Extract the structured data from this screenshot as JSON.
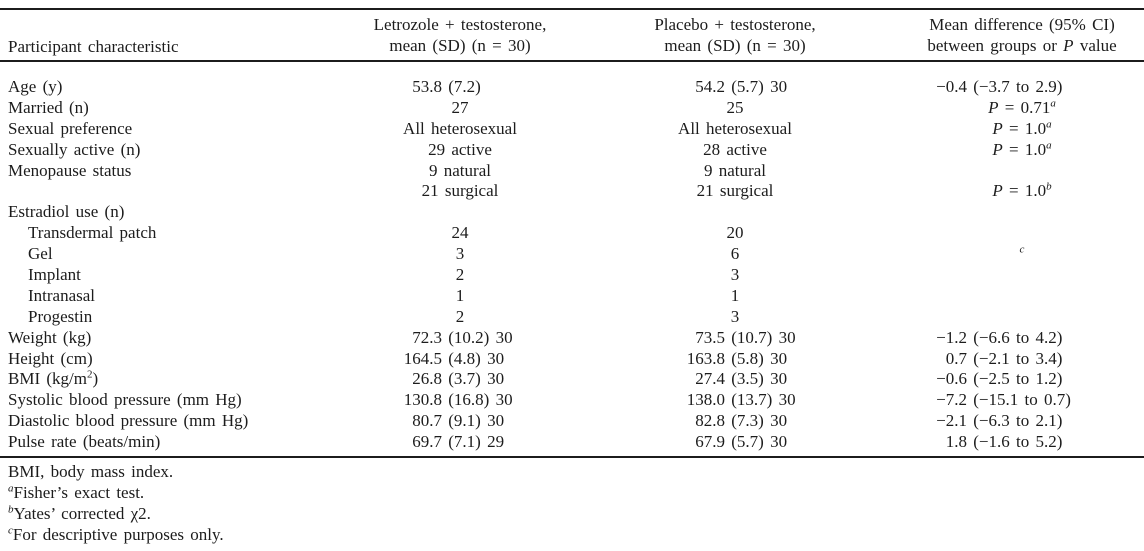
{
  "table": {
    "p": "P",
    "header": {
      "c1": "Participant characteristic",
      "c2": [
        "Letrozole + testosterone,",
        "mean (SD) (n = 30)"
      ],
      "c3": [
        "Placebo + testosterone,",
        "mean (SD) (n = 30)"
      ],
      "c4_line1": "Mean difference (95% CI)",
      "c4_line2_pre": "between groups or ",
      "c4_line2_post": " value"
    },
    "rows": [
      {
        "label": "Age (y)",
        "c2": {
          "h": "53.8",
          "t": " (7.2)"
        },
        "c3": {
          "h": "54.2",
          "t": " (5.7) 30"
        },
        "c4": {
          "h": "−0.4",
          "t": " (−3.7 to 2.9)"
        }
      },
      {
        "label": "Married (n)",
        "c2": {
          "c": "27"
        },
        "c3": {
          "c": "25"
        },
        "c4": {
          "p": " = 0.71",
          "sup": "a"
        }
      },
      {
        "label": "Sexual preference",
        "c2": {
          "c": "All heterosexual"
        },
        "c3": {
          "c": "All heterosexual"
        },
        "c4": {
          "p": " = 1.0",
          "sup": "a"
        }
      },
      {
        "label": "Sexually active (n)",
        "c2": {
          "c": "29 active"
        },
        "c3": {
          "c": "28 active"
        },
        "c4": {
          "p": " = 1.0",
          "sup": "a"
        }
      },
      {
        "label": "Menopause status",
        "c2": {
          "c": "9 natural"
        },
        "c3": {
          "c": "9 natural"
        }
      },
      {
        "label": "",
        "c2": {
          "c": "21 surgical"
        },
        "c3": {
          "c": "21 surgical"
        },
        "c4": {
          "p": " = 1.0",
          "sup": "b"
        }
      },
      {
        "label": "Estradiol use (n)"
      },
      {
        "label": "Transdermal patch",
        "indent": true,
        "c2": {
          "c": "24"
        },
        "c3": {
          "c": "20"
        }
      },
      {
        "label": "Gel",
        "indent": true,
        "c2": {
          "c": "3"
        },
        "c3": {
          "c": "6"
        },
        "c4": {
          "suponly": "c"
        }
      },
      {
        "label": "Implant",
        "indent": true,
        "c2": {
          "c": "2"
        },
        "c3": {
          "c": "3"
        }
      },
      {
        "label": "Intranasal",
        "indent": true,
        "c2": {
          "c": "1"
        },
        "c3": {
          "c": "1"
        }
      },
      {
        "label": "Progestin",
        "indent": true,
        "c2": {
          "c": "2"
        },
        "c3": {
          "c": "3"
        }
      },
      {
        "label": "Weight (kg)",
        "c2": {
          "h": "72.3",
          "t": " (10.2) 30"
        },
        "c3": {
          "h": "73.5",
          "t": " (10.7) 30"
        },
        "c4": {
          "h": "−1.2",
          "t": " (−6.6 to 4.2)"
        }
      },
      {
        "label": "Height (cm)",
        "c2": {
          "h": "164.5",
          "t": " (4.8) 30"
        },
        "c3": {
          "h": "163.8",
          "t": " (5.8) 30"
        },
        "c4": {
          "h": "0.7",
          "t": " (−2.1 to 3.4)"
        }
      },
      {
        "label_pre": "BMI (kg/m",
        "label_sup": "2",
        "label_post": ")",
        "c2": {
          "h": "26.8",
          "t": " (3.7) 30"
        },
        "c3": {
          "h": "27.4",
          "t": " (3.5) 30"
        },
        "c4": {
          "h": "−0.6",
          "t": " (−2.5 to 1.2)"
        }
      },
      {
        "label": "Systolic blood pressure (mm Hg)",
        "c2": {
          "h": "130.8",
          "t": " (16.8) 30"
        },
        "c3": {
          "h": "138.0",
          "t": " (13.7) 30"
        },
        "c4": {
          "h": "−7.2",
          "t": " (−15.1 to 0.7)"
        }
      },
      {
        "label": "Diastolic blood pressure (mm Hg)",
        "c2": {
          "h": "80.7",
          "t": " (9.1) 30"
        },
        "c3": {
          "h": "82.8",
          "t": " (7.3) 30"
        },
        "c4": {
          "h": "−2.1",
          "t": " (−6.3 to 2.1)"
        }
      },
      {
        "label": "Pulse rate (beats/min)",
        "c2": {
          "h": "69.7",
          "t": " (7.1) 29"
        },
        "c3": {
          "h": "67.9",
          "t": " (5.7) 30"
        },
        "c4": {
          "h": "1.8",
          "t": " (−1.6 to 5.2)"
        }
      }
    ],
    "footnotes": {
      "abbrev": "BMI, body mass index.",
      "items": [
        {
          "sup": "a",
          "text": "Fisher’s exact test."
        },
        {
          "sup": "b",
          "text": "Yates’ corrected χ2."
        },
        {
          "sup": "c",
          "text": "For descriptive purposes only."
        }
      ]
    }
  }
}
